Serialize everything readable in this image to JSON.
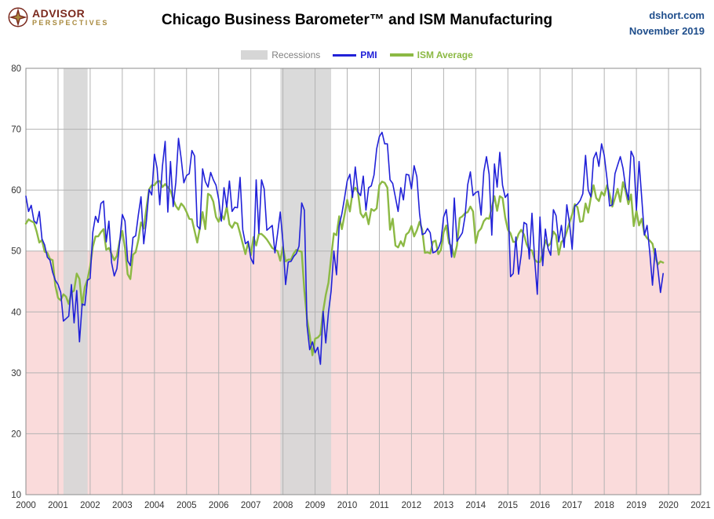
{
  "colors": {
    "brand_maroon": "#7b2a1e",
    "brand_gold": "#a8893d",
    "source_blue": "#1f4e8c",
    "pmi_blue": "#2121d8",
    "ism_green": "#8cb944",
    "recession_gray": "#d6d6d6",
    "below50_pink": "#fadbdb",
    "grid_gray": "#b3b3b3",
    "legend_gray": "#808080",
    "plot_border": "#8c8c8c"
  },
  "header": {
    "brand_line1": "ADVISOR",
    "brand_line2": "PERSPECTIVES",
    "title": "Chicago Business Barometer™ and ISM Manufacturing",
    "source": "dshort.com",
    "date": "November 2019"
  },
  "chart_data": {
    "type": "line",
    "title": "Chicago Business Barometer™ and ISM Manufacturing",
    "legend": [
      "Recessions",
      "PMI",
      "ISM Average"
    ],
    "legend_position": "top-center",
    "grid": true,
    "x_axis": {
      "start_year": 2000,
      "end_year": 2021,
      "tick_years": [
        2000,
        2001,
        2002,
        2003,
        2004,
        2005,
        2006,
        2007,
        2008,
        2009,
        2010,
        2011,
        2012,
        2013,
        2014,
        2015,
        2016,
        2017,
        2018,
        2019,
        2020,
        2021
      ]
    },
    "y_axis": {
      "min": 10,
      "max": 80,
      "tick_interval": 10
    },
    "below_50_shading": {
      "from": 10,
      "to": 50
    },
    "recessions": [
      {
        "start": 2001.17,
        "end": 2001.92
      },
      {
        "start": 2007.92,
        "end": 2009.5
      }
    ],
    "series": [
      {
        "name": "PMI",
        "color": "#2121d8",
        "start": "2000-01",
        "frequency": "monthly",
        "values": [
          59.0,
          56.5,
          57.5,
          55.0,
          54.5,
          56.5,
          52.0,
          51.0,
          49.0,
          48.5,
          46.5,
          45.2,
          44.5,
          43.2,
          38.5,
          38.9,
          39.3,
          44.5,
          38.2,
          43.5,
          35.1,
          41.3,
          41.1,
          45.2,
          45.5,
          53.1,
          55.7,
          54.7,
          57.8,
          58.2,
          51.5,
          54.9,
          48.1,
          45.9,
          47.1,
          51.3,
          56.0,
          54.9,
          48.4,
          47.6,
          52.2,
          52.5,
          55.9,
          58.9,
          51.2,
          55.0,
          60.1,
          59.2,
          65.9,
          63.6,
          57.6,
          63.9,
          68.0,
          56.4,
          64.7,
          57.3,
          61.3,
          68.5,
          65.2,
          61.2,
          62.4,
          62.7,
          66.5,
          65.6,
          54.1,
          53.6,
          63.5,
          61.4,
          60.5,
          62.9,
          61.7,
          60.8,
          58.5,
          54.9,
          60.4,
          57.2,
          61.5,
          56.5,
          57.2,
          57.1,
          62.1,
          53.5,
          51.2,
          51.6,
          48.8,
          47.9,
          61.7,
          52.9,
          61.7,
          60.2,
          53.4,
          53.8,
          54.2,
          49.7,
          52.9,
          56.4,
          51.5,
          44.5,
          48.2,
          48.3,
          49.1,
          49.6,
          50.8,
          57.9,
          56.7,
          37.8,
          33.8,
          35.1,
          33.3,
          34.2,
          31.4,
          40.1,
          34.9,
          39.9,
          43.4,
          50.0,
          46.1,
          54.2,
          56.1,
          58.7,
          61.5,
          62.6,
          58.8,
          63.8,
          59.7,
          59.1,
          62.3,
          56.7,
          60.4,
          60.7,
          62.5,
          66.8,
          68.8,
          69.5,
          67.6,
          67.6,
          61.7,
          61.1,
          58.8,
          56.5,
          60.4,
          58.4,
          62.6,
          62.5,
          60.2,
          64.0,
          62.2,
          56.2,
          52.7,
          52.9,
          53.7,
          53.0,
          49.7,
          49.9,
          50.4,
          51.6,
          55.6,
          56.8,
          52.4,
          49.0,
          58.7,
          51.6,
          52.3,
          53.0,
          55.7,
          60.9,
          63.0,
          59.1,
          59.6,
          59.8,
          55.9,
          63.0,
          65.5,
          62.6,
          52.6,
          64.3,
          60.5,
          66.2,
          60.8,
          58.8,
          59.4,
          45.8,
          46.3,
          52.3,
          46.2,
          49.4,
          54.7,
          54.4,
          48.7,
          56.2,
          48.7,
          42.9,
          55.6,
          47.6,
          53.6,
          50.4,
          49.3,
          56.8,
          55.8,
          51.5,
          54.2,
          50.6,
          57.6,
          54.6,
          50.3,
          57.4,
          57.7,
          58.3,
          59.4,
          65.7,
          60.0,
          58.9,
          65.2,
          66.2,
          63.9,
          67.6,
          65.7,
          61.9,
          57.4,
          57.6,
          62.7,
          64.1,
          65.5,
          63.6,
          60.4,
          58.4,
          66.4,
          65.4,
          56.7,
          64.7,
          58.7,
          52.6,
          54.2,
          49.7,
          44.4,
          50.4,
          47.1,
          43.2,
          46.3
        ]
      },
      {
        "name": "ISM Average",
        "color": "#8cb944",
        "start": "2000-01",
        "frequency": "monthly",
        "values": [
          54.5,
          55.2,
          54.9,
          54.7,
          53.2,
          51.4,
          51.8,
          49.9,
          49.7,
          48.7,
          48.5,
          44.3,
          42.3,
          41.9,
          42.9,
          42.5,
          41.3,
          43.2,
          43.5,
          46.3,
          45.4,
          41.0,
          44.1,
          45.3,
          47.5,
          50.7,
          52.4,
          52.4,
          53.1,
          53.6,
          50.2,
          50.5,
          49.5,
          48.5,
          49.2,
          51.6,
          53.3,
          50.5,
          46.2,
          45.4,
          49.4,
          49.8,
          51.8,
          54.7,
          53.7,
          57.0,
          60.1,
          60.8,
          60.8,
          61.4,
          61.5,
          60.5,
          61.0,
          60.5,
          59.9,
          58.5,
          57.4,
          56.8,
          57.8,
          57.3,
          56.4,
          55.3,
          55.2,
          53.3,
          51.4,
          53.8,
          56.4,
          53.6,
          59.4,
          59.1,
          58.1,
          55.6,
          54.8,
          56.0,
          55.2,
          57.3,
          54.4,
          53.8,
          54.7,
          54.5,
          52.9,
          51.2,
          49.5,
          51.4,
          49.3,
          52.3,
          50.9,
          52.8,
          52.8,
          52.4,
          51.9,
          51.2,
          50.5,
          50.2,
          50.0,
          48.4,
          50.7,
          48.3,
          48.6,
          48.6,
          49.6,
          50.2,
          50.0,
          49.9,
          43.5,
          38.9,
          36.2,
          32.9,
          35.6,
          35.8,
          36.3,
          40.1,
          42.8,
          44.8,
          48.9,
          52.9,
          52.6,
          55.7,
          53.6,
          55.9,
          58.4,
          56.5,
          59.6,
          60.4,
          59.7,
          56.2,
          55.5,
          56.3,
          54.4,
          56.9,
          56.6,
          57.0,
          60.8,
          61.4,
          61.2,
          60.4,
          53.5,
          55.3,
          50.9,
          50.6,
          51.6,
          50.8,
          52.7,
          53.1,
          54.1,
          52.4,
          53.4,
          54.8,
          53.5,
          49.7,
          49.8,
          49.6,
          51.5,
          51.7,
          49.5,
          50.2,
          53.1,
          54.2,
          51.3,
          50.7,
          49.0,
          50.9,
          55.4,
          55.7,
          56.2,
          56.4,
          57.3,
          56.5,
          51.3,
          53.2,
          53.7,
          54.9,
          55.4,
          55.3,
          57.1,
          59.0,
          56.6,
          59.0,
          58.7,
          55.5,
          53.5,
          52.9,
          51.5,
          51.5,
          52.8,
          53.5,
          52.7,
          51.1,
          50.2,
          50.1,
          48.6,
          48.2,
          48.2,
          49.5,
          51.8,
          50.8,
          51.3,
          53.2,
          52.6,
          49.4,
          51.5,
          51.9,
          53.2,
          54.7,
          56.0,
          57.7,
          57.2,
          54.8,
          54.9,
          57.8,
          56.3,
          58.8,
          60.8,
          58.7,
          58.2,
          59.7,
          59.1,
          60.8,
          59.3,
          57.3,
          58.7,
          60.2,
          58.1,
          61.3,
          59.8,
          57.7,
          59.3,
          54.1,
          56.6,
          54.2,
          55.3,
          52.8,
          52.1,
          51.7,
          51.2,
          49.1,
          47.8,
          48.3,
          48.1
        ]
      }
    ]
  }
}
